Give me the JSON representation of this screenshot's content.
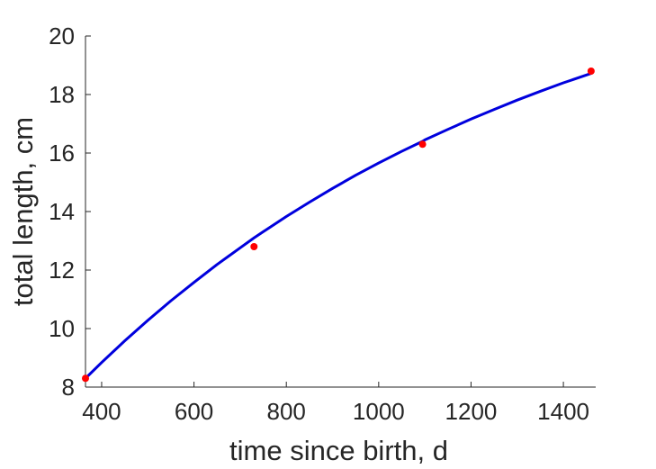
{
  "chart_data": {
    "type": "scatter",
    "xlabel": "time since birth, d",
    "ylabel": "total length, cm",
    "xlim": [
      365,
      1470
    ],
    "ylim": [
      8,
      20
    ],
    "xticks": [
      "400",
      "600",
      "800",
      "1000",
      "1200",
      "1400"
    ],
    "yticks": [
      "8",
      "10",
      "12",
      "14",
      "16",
      "18",
      "20"
    ],
    "grid": false,
    "legend": "none",
    "series": [
      {
        "kind": "points",
        "color": "#ff0000",
        "x": [
          365,
          730,
          1095,
          1460
        ],
        "y": [
          8.3,
          12.8,
          16.3,
          18.8
        ]
      },
      {
        "kind": "line",
        "color": "#0000dd",
        "x": [
          365,
          400,
          450,
          500,
          550,
          600,
          650,
          700,
          730,
          750,
          800,
          850,
          900,
          950,
          1000,
          1050,
          1095,
          1100,
          1150,
          1200,
          1250,
          1300,
          1350,
          1400,
          1460
        ],
        "y": [
          8.3,
          8.84,
          9.58,
          10.28,
          10.95,
          11.58,
          12.19,
          12.76,
          13.1,
          13.31,
          13.83,
          14.32,
          14.79,
          15.24,
          15.66,
          16.06,
          16.4,
          16.45,
          16.81,
          17.16,
          17.49,
          17.81,
          18.11,
          18.4,
          18.72
        ]
      }
    ]
  }
}
